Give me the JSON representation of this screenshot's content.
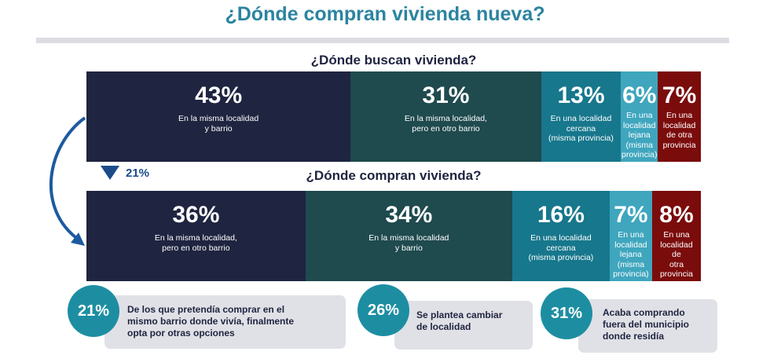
{
  "title": "¿Dónde compran vivienda nueva?",
  "colors": {
    "title": "#2b84a0",
    "accent": "#1c4b8c",
    "circle": "#1d8ea2"
  },
  "chart_data": [
    {
      "type": "bar",
      "orientation": "horizontal-stacked-100",
      "title": "¿Dónde buscan vivienda?",
      "segments": [
        {
          "value": 43,
          "label": "43%",
          "description": "En la misma localidad\ny barrio",
          "color": "#1f2440"
        },
        {
          "value": 31,
          "label": "31%",
          "description": "En la misma localidad,\npero en otro barrio",
          "color": "#1f4a4e"
        },
        {
          "value": 13,
          "label": "13%",
          "description": "En una localidad cercana\n(misma provincia)",
          "color": "#17778c"
        },
        {
          "value": 6,
          "label": "6%",
          "description": "En una localidad\nlejana (misma\nprovincia)",
          "color": "#3fa6be"
        },
        {
          "value": 7,
          "label": "7%",
          "description": "En una localidad\nde otra provincia",
          "color": "#7b0c0c"
        }
      ]
    },
    {
      "type": "bar",
      "orientation": "horizontal-stacked-100",
      "title": "¿Dónde compran vivienda?",
      "segments": [
        {
          "value": 36,
          "label": "36%",
          "description": "En la misma localidad,\npero en otro barrio",
          "color": "#1f2440"
        },
        {
          "value": 34,
          "label": "34%",
          "description": "En la misma localidad\ny barrio",
          "color": "#1f4a4e"
        },
        {
          "value": 16,
          "label": "16%",
          "description": "En una localidad cercana\n(misma provincia)",
          "color": "#17778c"
        },
        {
          "value": 7,
          "label": "7%",
          "description": "En una localidad\nlejana (misma\nprovincia)",
          "color": "#3fa6be"
        },
        {
          "value": 8,
          "label": "8%",
          "description": "En una localidad de\notra provincia",
          "color": "#7b0c0c"
        }
      ]
    }
  ],
  "delta": {
    "label": "21%",
    "direction": "down"
  },
  "callouts": [
    {
      "value": "21%",
      "text": "De los que pretendía comprar en el\nmismo barrio donde vivía, finalmente\nopta por otras opciones"
    },
    {
      "value": "26%",
      "text": "Se plantea cambiar\nde localidad"
    },
    {
      "value": "31%",
      "text": "Acaba comprando\nfuera del municipio\ndonde residía"
    }
  ]
}
